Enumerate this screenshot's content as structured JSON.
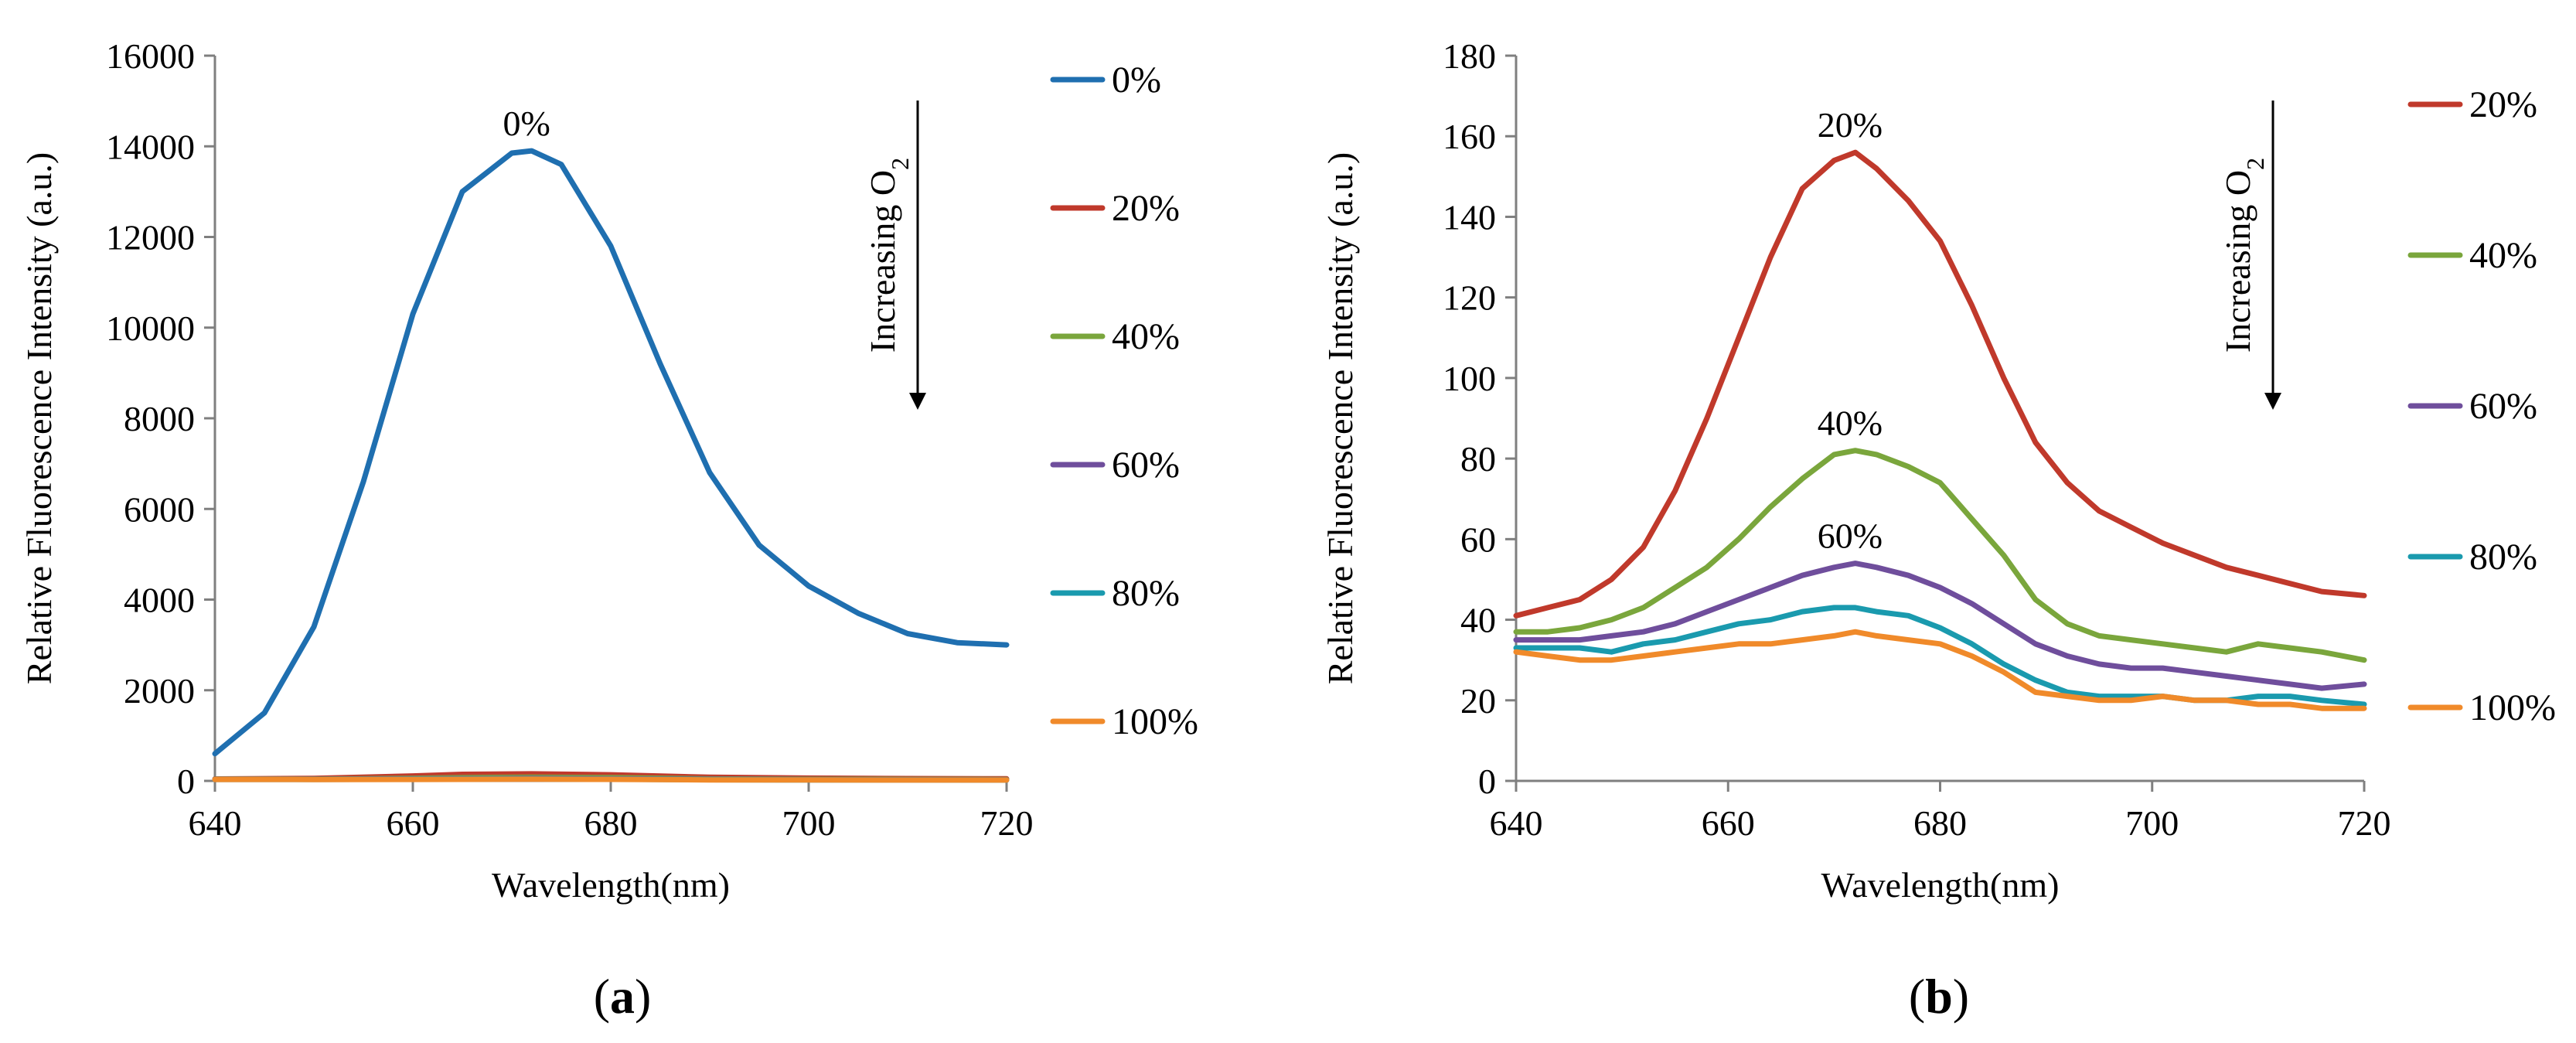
{
  "chart_data": [
    {
      "panel": "a",
      "caption_letter": "a",
      "type": "line",
      "xlabel": "Wavelength(nm)",
      "ylabel": "Relative Fluorescence Intensity (a.u.)",
      "xlim": [
        640,
        720
      ],
      "ylim": [
        0,
        16000
      ],
      "xticks": [
        640,
        660,
        680,
        700,
        720
      ],
      "yticks": [
        0,
        2000,
        4000,
        6000,
        8000,
        10000,
        12000,
        14000,
        16000
      ],
      "grid": false,
      "legend_position": "right",
      "annotation": {
        "text_prefix": "Increasing O",
        "text_sub": "2"
      },
      "peak_labels": [
        {
          "text": "0%",
          "x": 671.5,
          "y": 13900
        }
      ],
      "series": [
        {
          "name": "0%",
          "color": "#1f6fb0",
          "x": [
            640,
            645,
            650,
            655,
            660,
            665,
            670,
            672,
            675,
            680,
            685,
            690,
            695,
            700,
            705,
            710,
            715,
            720
          ],
          "y": [
            600,
            1500,
            3400,
            6600,
            10300,
            13000,
            13850,
            13900,
            13600,
            11800,
            9200,
            6800,
            5200,
            4300,
            3700,
            3250,
            3050,
            3000
          ]
        },
        {
          "name": "20%",
          "color": "#c0392b",
          "x": [
            640,
            650,
            660,
            665,
            672,
            680,
            690,
            700,
            710,
            720
          ],
          "y": [
            42,
            55,
            110,
            145,
            156,
            135,
            80,
            62,
            52,
            46
          ]
        },
        {
          "name": "40%",
          "color": "#7aa63c",
          "x": [
            640,
            650,
            660,
            665,
            672,
            680,
            690,
            700,
            710,
            720
          ],
          "y": [
            37,
            40,
            58,
            72,
            82,
            72,
            45,
            35,
            33,
            30
          ]
        },
        {
          "name": "60%",
          "color": "#6f4e9c",
          "x": [
            640,
            650,
            660,
            665,
            672,
            680,
            690,
            700,
            710,
            720
          ],
          "y": [
            35,
            36,
            44,
            50,
            54,
            48,
            34,
            28,
            25,
            24
          ]
        },
        {
          "name": "80%",
          "color": "#1a9aae",
          "x": [
            640,
            650,
            660,
            665,
            672,
            680,
            690,
            700,
            710,
            720
          ],
          "y": [
            33,
            33,
            38,
            41,
            43,
            38,
            25,
            21,
            21,
            19
          ]
        },
        {
          "name": "100%",
          "color": "#f08a2a",
          "x": [
            640,
            650,
            660,
            665,
            672,
            680,
            690,
            700,
            710,
            720
          ],
          "y": [
            32,
            30,
            33,
            34,
            37,
            34,
            22,
            20,
            19,
            18
          ]
        }
      ]
    },
    {
      "panel": "b",
      "caption_letter": "b",
      "type": "line",
      "xlabel": "Wavelength(nm)",
      "ylabel": "Relative Fluorescence Intensity (a.u.)",
      "xlim": [
        640,
        720
      ],
      "ylim": [
        0,
        180
      ],
      "xticks": [
        640,
        660,
        680,
        700,
        720
      ],
      "yticks": [
        0,
        20,
        40,
        60,
        80,
        100,
        120,
        140,
        160,
        180
      ],
      "grid": false,
      "legend_position": "right",
      "annotation": {
        "text_prefix": "Increasing O",
        "text_sub": "2"
      },
      "peak_labels": [
        {
          "text": "20%",
          "x": 671.5,
          "y": 156
        },
        {
          "text": "40%",
          "x": 671.5,
          "y": 82
        },
        {
          "text": "60%",
          "x": 671.5,
          "y": 54
        }
      ],
      "series": [
        {
          "name": "20%",
          "color": "#c0392b",
          "x": [
            640,
            643,
            646,
            649,
            652,
            655,
            658,
            661,
            664,
            667,
            670,
            672,
            674,
            677,
            680,
            683,
            686,
            689,
            692,
            695,
            698,
            701,
            704,
            707,
            710,
            713,
            716,
            720
          ],
          "y": [
            41,
            43,
            45,
            50,
            58,
            72,
            90,
            110,
            130,
            147,
            154,
            156,
            152,
            144,
            134,
            118,
            100,
            84,
            74,
            67,
            63,
            59,
            56,
            53,
            51,
            49,
            47,
            46
          ]
        },
        {
          "name": "40%",
          "color": "#7aa63c",
          "x": [
            640,
            643,
            646,
            649,
            652,
            655,
            658,
            661,
            664,
            667,
            670,
            672,
            674,
            677,
            680,
            683,
            686,
            689,
            692,
            695,
            698,
            701,
            704,
            707,
            710,
            713,
            716,
            720
          ],
          "y": [
            37,
            37,
            38,
            40,
            43,
            48,
            53,
            60,
            68,
            75,
            81,
            82,
            81,
            78,
            74,
            65,
            56,
            45,
            39,
            36,
            35,
            34,
            33,
            32,
            34,
            33,
            32,
            30
          ]
        },
        {
          "name": "60%",
          "color": "#6f4e9c",
          "x": [
            640,
            643,
            646,
            649,
            652,
            655,
            658,
            661,
            664,
            667,
            670,
            672,
            674,
            677,
            680,
            683,
            686,
            689,
            692,
            695,
            698,
            701,
            704,
            707,
            710,
            713,
            716,
            720
          ],
          "y": [
            35,
            35,
            35,
            36,
            37,
            39,
            42,
            45,
            48,
            51,
            53,
            54,
            53,
            51,
            48,
            44,
            39,
            34,
            31,
            29,
            28,
            28,
            27,
            26,
            25,
            24,
            23,
            24
          ]
        },
        {
          "name": "80%",
          "color": "#1a9aae",
          "x": [
            640,
            643,
            646,
            649,
            652,
            655,
            658,
            661,
            664,
            667,
            670,
            672,
            674,
            677,
            680,
            683,
            686,
            689,
            692,
            695,
            698,
            701,
            704,
            707,
            710,
            713,
            716,
            720
          ],
          "y": [
            33,
            33,
            33,
            32,
            34,
            35,
            37,
            39,
            40,
            42,
            43,
            43,
            42,
            41,
            38,
            34,
            29,
            25,
            22,
            21,
            21,
            21,
            20,
            20,
            21,
            21,
            20,
            19
          ]
        },
        {
          "name": "100%",
          "color": "#f08a2a",
          "x": [
            640,
            643,
            646,
            649,
            652,
            655,
            658,
            661,
            664,
            667,
            670,
            672,
            674,
            677,
            680,
            683,
            686,
            689,
            692,
            695,
            698,
            701,
            704,
            707,
            710,
            713,
            716,
            720
          ],
          "y": [
            32,
            31,
            30,
            30,
            31,
            32,
            33,
            34,
            34,
            35,
            36,
            37,
            36,
            35,
            34,
            31,
            27,
            22,
            21,
            20,
            20,
            21,
            20,
            20,
            19,
            19,
            18,
            18
          ]
        }
      ]
    }
  ]
}
